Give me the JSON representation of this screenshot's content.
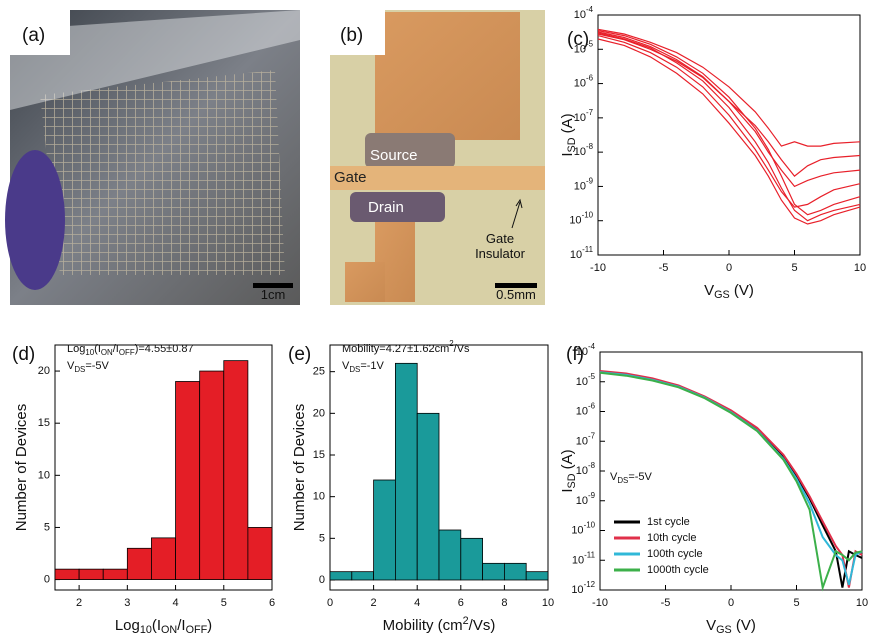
{
  "photos": [
    {
      "label": "(a)",
      "scale_bar": "1cm"
    },
    {
      "label": "(b)",
      "annotations": [
        "Source",
        "Gate",
        "Drain",
        "Gate\nInsulator"
      ],
      "scale_bar": "0.5mm"
    }
  ],
  "chart_data": [
    {
      "type": "line",
      "label": "(c)",
      "log_y": true,
      "color": "#e8202a",
      "x_label": "V_{GS} (V)",
      "y_label": "I_{SD} (A)",
      "xlim": [
        -10,
        10
      ],
      "xticks": [
        -10,
        -5,
        0,
        5,
        10
      ],
      "ylim": [
        1e-11,
        0.0001
      ],
      "yticks": [
        {
          "value": 1e-11,
          "label": "10^{-11}"
        },
        {
          "value": 1e-10,
          "label": "10^{-10}"
        },
        {
          "value": 1e-09,
          "label": "10^{-9}"
        },
        {
          "value": 1e-08,
          "label": "10^{-8}"
        },
        {
          "value": 1e-07,
          "label": "10^{-7}"
        },
        {
          "value": 1e-06,
          "label": "10^{-6}"
        },
        {
          "value": 1e-05,
          "label": "10^{-5}"
        },
        {
          "value": 0.0001,
          "label": "10^{-4}"
        }
      ],
      "x": [
        -10,
        -8,
        -6,
        -4,
        -2,
        0,
        2,
        3,
        4,
        5,
        6,
        7,
        8,
        10
      ],
      "series": [
        {
          "values": [
            3.5e-05,
            2.5e-05,
            1.4e-05,
            6e-06,
            2e-06,
            4e-07,
            5e-08,
            1.2e-08,
            2e-09,
            3e-10,
            1.5e-10,
            2e-10,
            3e-10,
            5e-10
          ]
        },
        {
          "values": [
            3e-05,
            2e-05,
            1.1e-05,
            4e-06,
            1.2e-06,
            2e-07,
            2e-08,
            5e-09,
            9e-10,
            2e-10,
            1e-10,
            1.5e-10,
            2e-10,
            3e-10
          ]
        },
        {
          "values": [
            2.5e-05,
            1.6e-05,
            8e-06,
            3e-06,
            8e-07,
            1.2e-07,
            1.2e-08,
            3e-09,
            7e-10,
            2.5e-10,
            3e-10,
            5e-10,
            8e-10,
            1.2e-09
          ]
        },
        {
          "values": [
            3.8e-05,
            2.8e-05,
            1.6e-05,
            8e-06,
            3e-06,
            8e-07,
            1.5e-07,
            5e-08,
            1.5e-08,
            2e-08,
            1.5e-08,
            1.5e-08,
            1.8e-08,
            2e-08
          ]
        },
        {
          "values": [
            2e-05,
            1.3e-05,
            6e-06,
            2e-06,
            5e-07,
            7e-08,
            8e-09,
            2e-09,
            4e-10,
            1.2e-10,
            8e-11,
            1e-10,
            1.5e-10,
            2.5e-10
          ]
        },
        {
          "values": [
            3.2e-05,
            2.2e-05,
            1.2e-05,
            5e-06,
            1.6e-06,
            3e-07,
            4e-08,
            1e-08,
            3e-09,
            1e-09,
            1.5e-09,
            2e-09,
            2.5e-09,
            3e-09
          ]
        },
        {
          "values": [
            2.8e-05,
            1.9e-05,
            1e-05,
            4.5e-06,
            1.5e-06,
            3e-07,
            6e-08,
            2e-08,
            6e-09,
            2e-09,
            4e-09,
            6e-09,
            7e-09,
            8e-09
          ]
        }
      ]
    },
    {
      "type": "histogram",
      "label": "(d)",
      "color": "#e41e26",
      "x_label": "Log_{10}(I_{ON}/I_{OFF})",
      "y_label": "Number of Devices",
      "annotations": [
        "Log_{10}(I_{ON}/I_{OFF})=4.55±0.87",
        "V_{DS}=-5V"
      ],
      "xlim": [
        1.5,
        6
      ],
      "xticks": [
        2,
        3,
        4,
        5,
        6
      ],
      "ylim": [
        -1,
        22.5
      ],
      "yticks": [
        0,
        5,
        10,
        15,
        20
      ],
      "bins": [
        1.5,
        2,
        2.5,
        3,
        3.5,
        4,
        4.5,
        5,
        5.5,
        6
      ],
      "values": [
        1,
        1,
        1,
        3,
        4,
        19,
        20,
        21,
        5
      ]
    },
    {
      "type": "histogram",
      "label": "(e)",
      "color": "#1a9a9a",
      "x_label": "Mobility (cm^{2}/Vs)",
      "y_label": "Number of Devices",
      "annotations": [
        "Mobility=4.27±1.62cm^{2}/Vs",
        "V_{DS}=-1V"
      ],
      "xlim": [
        0,
        10
      ],
      "xticks": [
        0,
        2,
        4,
        6,
        8,
        10
      ],
      "ylim": [
        -1.2,
        28.2
      ],
      "yticks": [
        0,
        5,
        10,
        15,
        20,
        25
      ],
      "bins": [
        0,
        1,
        2,
        3,
        4,
        5,
        6,
        7,
        8,
        9,
        10
      ],
      "values": [
        1,
        1,
        12,
        26,
        20,
        6,
        5,
        2,
        2,
        1
      ]
    },
    {
      "type": "line",
      "label": "(f)",
      "log_y": true,
      "legend": "lower left",
      "x_label": "V_{GS} (V)",
      "y_label": "I_{SD} (A)",
      "annotations": [
        "V_{DS}=-5V"
      ],
      "xlim": [
        -10,
        10
      ],
      "xticks": [
        -10,
        -5,
        0,
        5,
        10
      ],
      "ylim": [
        1e-12,
        0.0001
      ],
      "yticks": [
        {
          "value": 1e-12,
          "label": "10^{-12}"
        },
        {
          "value": 1e-11,
          "label": "10^{-11}"
        },
        {
          "value": 1e-10,
          "label": "10^{-10}"
        },
        {
          "value": 1e-09,
          "label": "10^{-9}"
        },
        {
          "value": 1e-08,
          "label": "10^{-8}"
        },
        {
          "value": 1e-07,
          "label": "10^{-7}"
        },
        {
          "value": 1e-06,
          "label": "10^{-6}"
        },
        {
          "value": 1e-05,
          "label": "10^{-5}"
        },
        {
          "value": 0.0001,
          "label": "10^{-4}"
        }
      ],
      "x": [
        -10,
        -8,
        -6,
        -4,
        -2,
        0,
        2,
        4,
        5,
        6,
        7,
        8,
        8.5,
        9,
        9.5,
        10
      ],
      "series": [
        {
          "name": "1st cycle",
          "color": "#000000",
          "values": [
            2.2e-05,
            1.8e-05,
            1.2e-05,
            7e-06,
            3e-06,
            1e-06,
            2.5e-07,
            3e-08,
            7e-09,
            1.2e-09,
            1.5e-10,
            2e-11,
            1.2e-12,
            2e-11,
            1.5e-11,
            1.2e-11
          ]
        },
        {
          "name": "10th cycle",
          "color": "#e0304a",
          "values": [
            2.3e-05,
            1.9e-05,
            1.3e-05,
            7.5e-06,
            3.2e-06,
            1.1e-06,
            2.8e-07,
            3.5e-08,
            8e-09,
            1.4e-09,
            2e-10,
            3e-11,
            1.5e-11,
            1.2e-12,
            2e-11,
            1.5e-11
          ]
        },
        {
          "name": "100th cycle",
          "color": "#30b8d8",
          "values": [
            2.1e-05,
            1.7e-05,
            1.15e-05,
            6.8e-06,
            2.9e-06,
            9.5e-07,
            2.3e-07,
            2.6e-08,
            5.5e-09,
            8e-10,
            6e-11,
            1.5e-11,
            1e-11,
            1.5e-12,
            1.5e-11,
            2e-11
          ]
        },
        {
          "name": "1000th cycle",
          "color": "#3cb04a",
          "values": [
            2e-05,
            1.6e-05,
            1.1e-05,
            6.5e-06,
            2.8e-06,
            9e-07,
            2.2e-07,
            2.4e-08,
            4.5e-09,
            5e-10,
            1.2e-12,
            2e-11,
            1.5e-11,
            1e-11,
            1.8e-11,
            2e-11
          ]
        }
      ]
    }
  ]
}
